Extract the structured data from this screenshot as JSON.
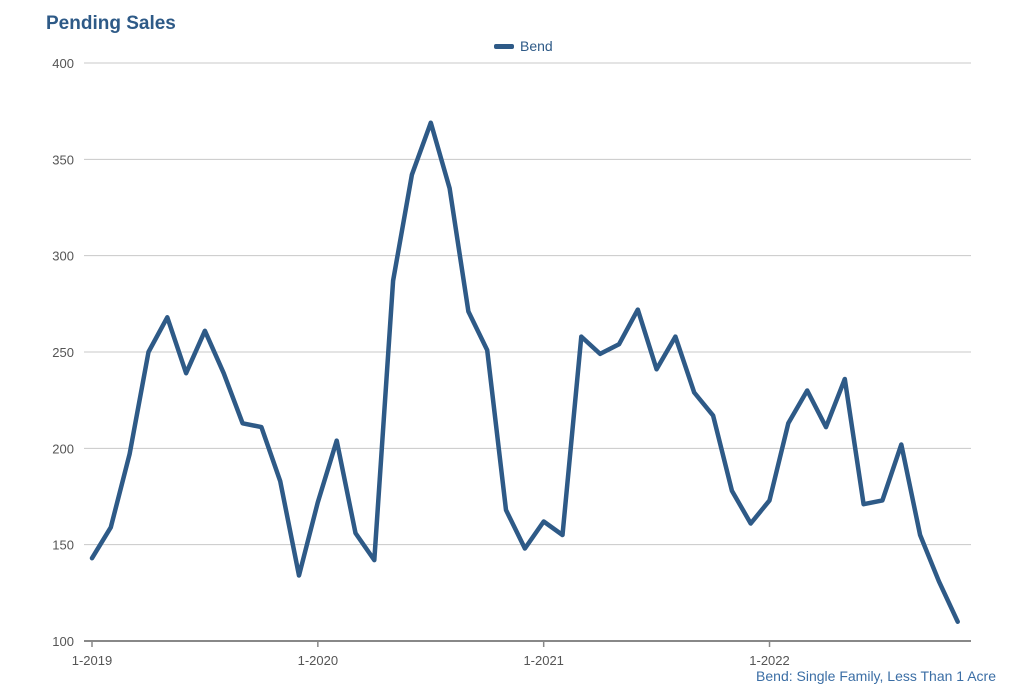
{
  "chart_data": {
    "type": "line",
    "title": "Pending Sales",
    "footnote": "Bend: Single Family, Less Than 1 Acre",
    "xlabel": "",
    "ylabel": "",
    "ylim": [
      100,
      400
    ],
    "yticks": [
      100,
      150,
      200,
      250,
      300,
      350,
      400
    ],
    "xticks": [
      {
        "index": 0,
        "label": "1-2019"
      },
      {
        "index": 12,
        "label": "1-2020"
      },
      {
        "index": 24,
        "label": "1-2021"
      },
      {
        "index": 36,
        "label": "1-2022"
      }
    ],
    "grid": true,
    "legend_position": "top-center",
    "color": "#2e5a87",
    "series": [
      {
        "name": "Bend",
        "values": [
          143,
          159,
          197,
          250,
          268,
          239,
          261,
          239,
          213,
          211,
          183,
          134,
          172,
          204,
          156,
          142,
          287,
          342,
          369,
          335,
          271,
          251,
          168,
          148,
          162,
          155,
          258,
          249,
          254,
          272,
          241,
          258,
          229,
          217,
          178,
          161,
          173,
          213,
          230,
          211,
          236,
          171,
          173,
          202,
          155,
          131,
          110
        ]
      }
    ]
  }
}
